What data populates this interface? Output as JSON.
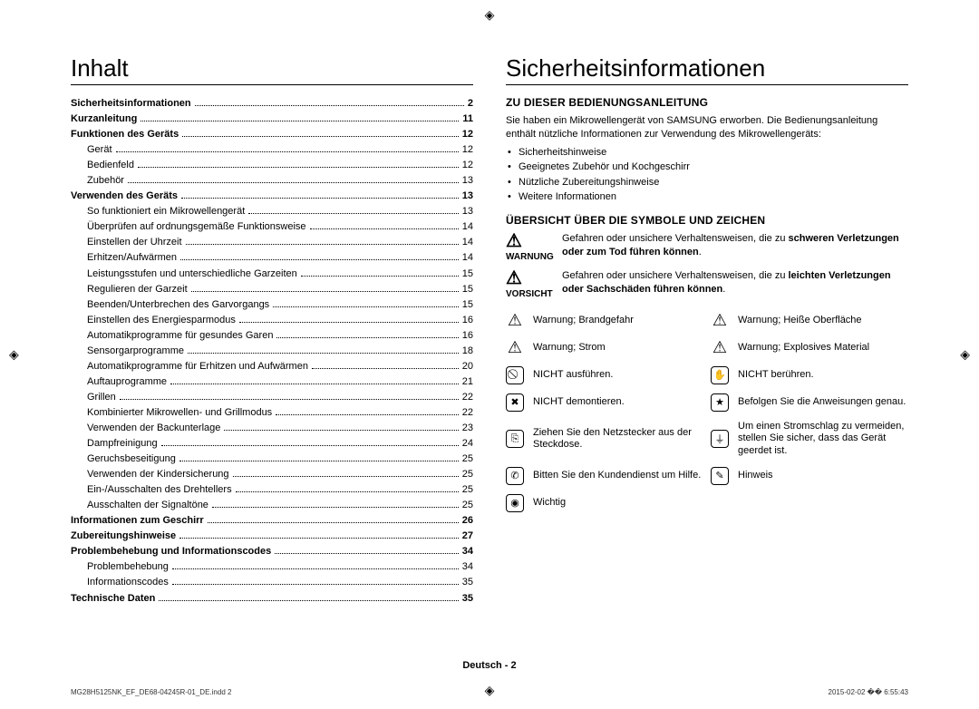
{
  "registration_mark": "◈",
  "left": {
    "heading": "Inhalt",
    "toc": [
      {
        "label": "Sicherheitsinformationen",
        "page": "2",
        "bold": true,
        "indent": 0
      },
      {
        "label": "Kurzanleitung",
        "page": "11",
        "bold": true,
        "indent": 0
      },
      {
        "label": "Funktionen des Geräts",
        "page": "12",
        "bold": true,
        "indent": 0
      },
      {
        "label": "Gerät",
        "page": "12",
        "bold": false,
        "indent": 1
      },
      {
        "label": "Bedienfeld",
        "page": "12",
        "bold": false,
        "indent": 1
      },
      {
        "label": "Zubehör",
        "page": "13",
        "bold": false,
        "indent": 1
      },
      {
        "label": "Verwenden des Geräts",
        "page": "13",
        "bold": true,
        "indent": 0
      },
      {
        "label": "So funktioniert ein Mikrowellengerät",
        "page": "13",
        "bold": false,
        "indent": 1
      },
      {
        "label": "Überprüfen auf ordnungsgemäße Funktionsweise",
        "page": "14",
        "bold": false,
        "indent": 1
      },
      {
        "label": "Einstellen der Uhrzeit",
        "page": "14",
        "bold": false,
        "indent": 1
      },
      {
        "label": "Erhitzen/Aufwärmen",
        "page": "14",
        "bold": false,
        "indent": 1
      },
      {
        "label": "Leistungsstufen und unterschiedliche Garzeiten",
        "page": "15",
        "bold": false,
        "indent": 1
      },
      {
        "label": "Regulieren der Garzeit",
        "page": "15",
        "bold": false,
        "indent": 1
      },
      {
        "label": "Beenden/Unterbrechen des Garvorgangs",
        "page": "15",
        "bold": false,
        "indent": 1
      },
      {
        "label": "Einstellen des Energiesparmodus",
        "page": "16",
        "bold": false,
        "indent": 1
      },
      {
        "label": "Automatikprogramme für gesundes Garen",
        "page": "16",
        "bold": false,
        "indent": 1
      },
      {
        "label": "Sensorgarprogramme",
        "page": "18",
        "bold": false,
        "indent": 1
      },
      {
        "label": "Automatikprogramme für Erhitzen und Aufwärmen",
        "page": "20",
        "bold": false,
        "indent": 1
      },
      {
        "label": "Auftauprogramme",
        "page": "21",
        "bold": false,
        "indent": 1
      },
      {
        "label": "Grillen",
        "page": "22",
        "bold": false,
        "indent": 1
      },
      {
        "label": "Kombinierter Mikrowellen- und Grillmodus",
        "page": "22",
        "bold": false,
        "indent": 1
      },
      {
        "label": "Verwenden der Backunterlage",
        "page": "23",
        "bold": false,
        "indent": 1
      },
      {
        "label": "Dampfreinigung",
        "page": "24",
        "bold": false,
        "indent": 1
      },
      {
        "label": "Geruchsbeseitigung",
        "page": "25",
        "bold": false,
        "indent": 1
      },
      {
        "label": "Verwenden der Kindersicherung",
        "page": "25",
        "bold": false,
        "indent": 1
      },
      {
        "label": "Ein-/Ausschalten des Drehtellers",
        "page": "25",
        "bold": false,
        "indent": 1
      },
      {
        "label": "Ausschalten der Signaltöne",
        "page": "25",
        "bold": false,
        "indent": 1
      },
      {
        "label": "Informationen zum Geschirr",
        "page": "26",
        "bold": true,
        "indent": 0
      },
      {
        "label": "Zubereitungshinweise",
        "page": "27",
        "bold": true,
        "indent": 0
      },
      {
        "label": "Problembehebung und Informationscodes",
        "page": "34",
        "bold": true,
        "indent": 0
      },
      {
        "label": "Problembehebung",
        "page": "34",
        "bold": false,
        "indent": 1
      },
      {
        "label": "Informationscodes",
        "page": "35",
        "bold": false,
        "indent": 1
      },
      {
        "label": "Technische Daten",
        "page": "35",
        "bold": true,
        "indent": 0
      }
    ]
  },
  "right": {
    "heading": "Sicherheitsinformationen",
    "section1_title": "ZU DIESER BEDIENUNGSANLEITUNG",
    "intro": "Sie haben ein Mikrowellengerät von SAMSUNG erworben. Die Bedienungsanleitung enthält nützliche Informationen zur Verwendung des Mikrowellengeräts:",
    "intro_bullets": [
      "Sicherheitshinweise",
      "Geeignetes Zubehör und Kochgeschirr",
      "Nützliche Zubereitungshinweise",
      "Weitere Informationen"
    ],
    "section2_title": "ÜBERSICHT ÜBER DIE SYMBOLE UND ZEICHEN",
    "warnung_label": "WARNUNG",
    "warnung_text_pre": "Gefahren oder unsichere Verhaltensweisen, die zu ",
    "warnung_text_bold": "schweren Verletzungen oder zum Tod führen können",
    "warnung_text_post": ".",
    "vorsicht_label": "VORSICHT",
    "vorsicht_text_pre": "Gefahren oder unsichere Verhaltensweisen, die zu ",
    "vorsicht_text_bold": "leichten Verletzungen oder Sachschäden führen können",
    "vorsicht_text_post": ".",
    "symbols": [
      {
        "glyph": "△",
        "tri": true,
        "text": "Warnung; Brandgefahr"
      },
      {
        "glyph": "△",
        "tri": true,
        "text": "Warnung; Heiße Oberfläche"
      },
      {
        "glyph": "△",
        "tri": true,
        "text": "Warnung; Strom"
      },
      {
        "glyph": "△",
        "tri": true,
        "text": "Warnung; Explosives Material"
      },
      {
        "glyph": "⃠",
        "tri": false,
        "text": "NICHT ausführen."
      },
      {
        "glyph": "✋",
        "tri": false,
        "text": "NICHT berühren."
      },
      {
        "glyph": "✖",
        "tri": false,
        "text": "NICHT demontieren."
      },
      {
        "glyph": "★",
        "tri": false,
        "text": "Befolgen Sie die Anweisungen genau."
      },
      {
        "glyph": "⎘",
        "tri": false,
        "text": "Ziehen Sie den Netzstecker aus der Steckdose."
      },
      {
        "glyph": "⏚",
        "tri": false,
        "text": "Um einen Stromschlag zu vermeiden, stellen Sie sicher, dass das Gerät geerdet ist."
      },
      {
        "glyph": "✆",
        "tri": false,
        "text": "Bitten Sie den Kundendienst um Hilfe."
      },
      {
        "glyph": "✎",
        "tri": false,
        "text": "Hinweis"
      },
      {
        "glyph": "◉",
        "tri": false,
        "text": "Wichtig"
      }
    ]
  },
  "footer": {
    "language": "Deutsch",
    "sep": " - ",
    "page": "2"
  },
  "print": {
    "file": "MG28H5125NK_EF_DE68-04245R-01_DE.indd   2",
    "timestamp": "2015-02-02   �� 6:55:43"
  }
}
